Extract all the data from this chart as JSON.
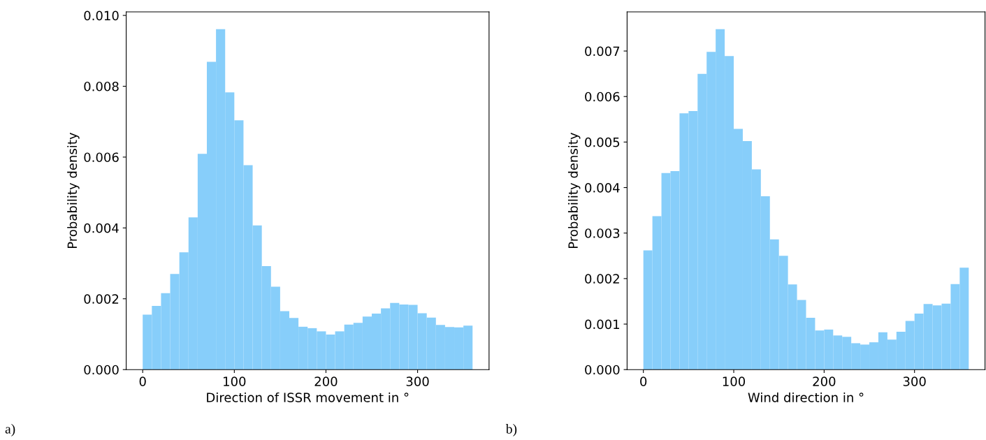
{
  "chart_data": [
    {
      "type": "histogram",
      "xlabel": "Direction of ISSR movement in °",
      "ylabel": "Probability density",
      "annotations": [
        "a)"
      ],
      "color": "#87cefa",
      "bins": [
        0,
        10,
        20,
        30,
        40,
        50,
        60,
        70,
        80,
        90,
        100,
        110,
        120,
        130,
        140,
        150,
        160,
        170,
        180,
        190,
        200,
        210,
        220,
        230,
        240,
        250,
        260,
        270,
        280,
        290,
        300,
        310,
        320,
        330,
        340,
        350,
        360
      ],
      "values": [
        0.00155,
        0.0018,
        0.00216,
        0.0027,
        0.00331,
        0.0043,
        0.00609,
        0.00869,
        0.00961,
        0.00783,
        0.00704,
        0.00577,
        0.00407,
        0.00292,
        0.00234,
        0.00165,
        0.00146,
        0.00121,
        0.00117,
        0.00108,
        0.00099,
        0.00108,
        0.00127,
        0.00132,
        0.0015,
        0.00158,
        0.00173,
        0.00188,
        0.00184,
        0.00183,
        0.00159,
        0.00147,
        0.00126,
        0.0012,
        0.00119,
        0.00124
      ],
      "xlim": [
        -18,
        378
      ],
      "xticks": [
        0,
        100,
        200,
        300
      ],
      "ylim": [
        0,
        0.0101
      ],
      "yticks": [
        {
          "value": 0,
          "label": "0.000"
        },
        {
          "value": 0.002,
          "label": "0.002"
        },
        {
          "value": 0.004,
          "label": "0.004"
        },
        {
          "value": 0.006,
          "label": "0.006"
        },
        {
          "value": 0.008,
          "label": "0.008"
        },
        {
          "value": 0.01,
          "label": "0.010"
        }
      ]
    },
    {
      "type": "histogram",
      "xlabel": "Wind direction in °",
      "ylabel": "Probability density",
      "annotations": [
        "b)"
      ],
      "color": "#87cefa",
      "bins": [
        0,
        10,
        20,
        30,
        40,
        50,
        60,
        70,
        80,
        90,
        100,
        110,
        120,
        130,
        140,
        150,
        160,
        170,
        180,
        190,
        200,
        210,
        220,
        230,
        240,
        250,
        260,
        270,
        280,
        290,
        300,
        310,
        320,
        330,
        340,
        350,
        360
      ],
      "values": [
        0.00262,
        0.00337,
        0.00432,
        0.00436,
        0.00563,
        0.00568,
        0.0065,
        0.00698,
        0.00748,
        0.00689,
        0.00529,
        0.00502,
        0.0044,
        0.00381,
        0.00286,
        0.0025,
        0.00187,
        0.00153,
        0.00114,
        0.00086,
        0.00088,
        0.00075,
        0.00072,
        0.00058,
        0.00055,
        0.0006,
        0.00082,
        0.00066,
        0.00083,
        0.00107,
        0.00123,
        0.00144,
        0.00141,
        0.00145,
        0.00188,
        0.00224
      ],
      "xlim": [
        -18,
        378
      ],
      "xticks": [
        0,
        100,
        200,
        300
      ],
      "ylim": [
        0,
        0.00786
      ],
      "yticks": [
        {
          "value": 0,
          "label": "0.000"
        },
        {
          "value": 0.001,
          "label": "0.001"
        },
        {
          "value": 0.002,
          "label": "0.002"
        },
        {
          "value": 0.003,
          "label": "0.003"
        },
        {
          "value": 0.004,
          "label": "0.004"
        },
        {
          "value": 0.005,
          "label": "0.005"
        },
        {
          "value": 0.006,
          "label": "0.006"
        },
        {
          "value": 0.007,
          "label": "0.007"
        }
      ]
    }
  ]
}
